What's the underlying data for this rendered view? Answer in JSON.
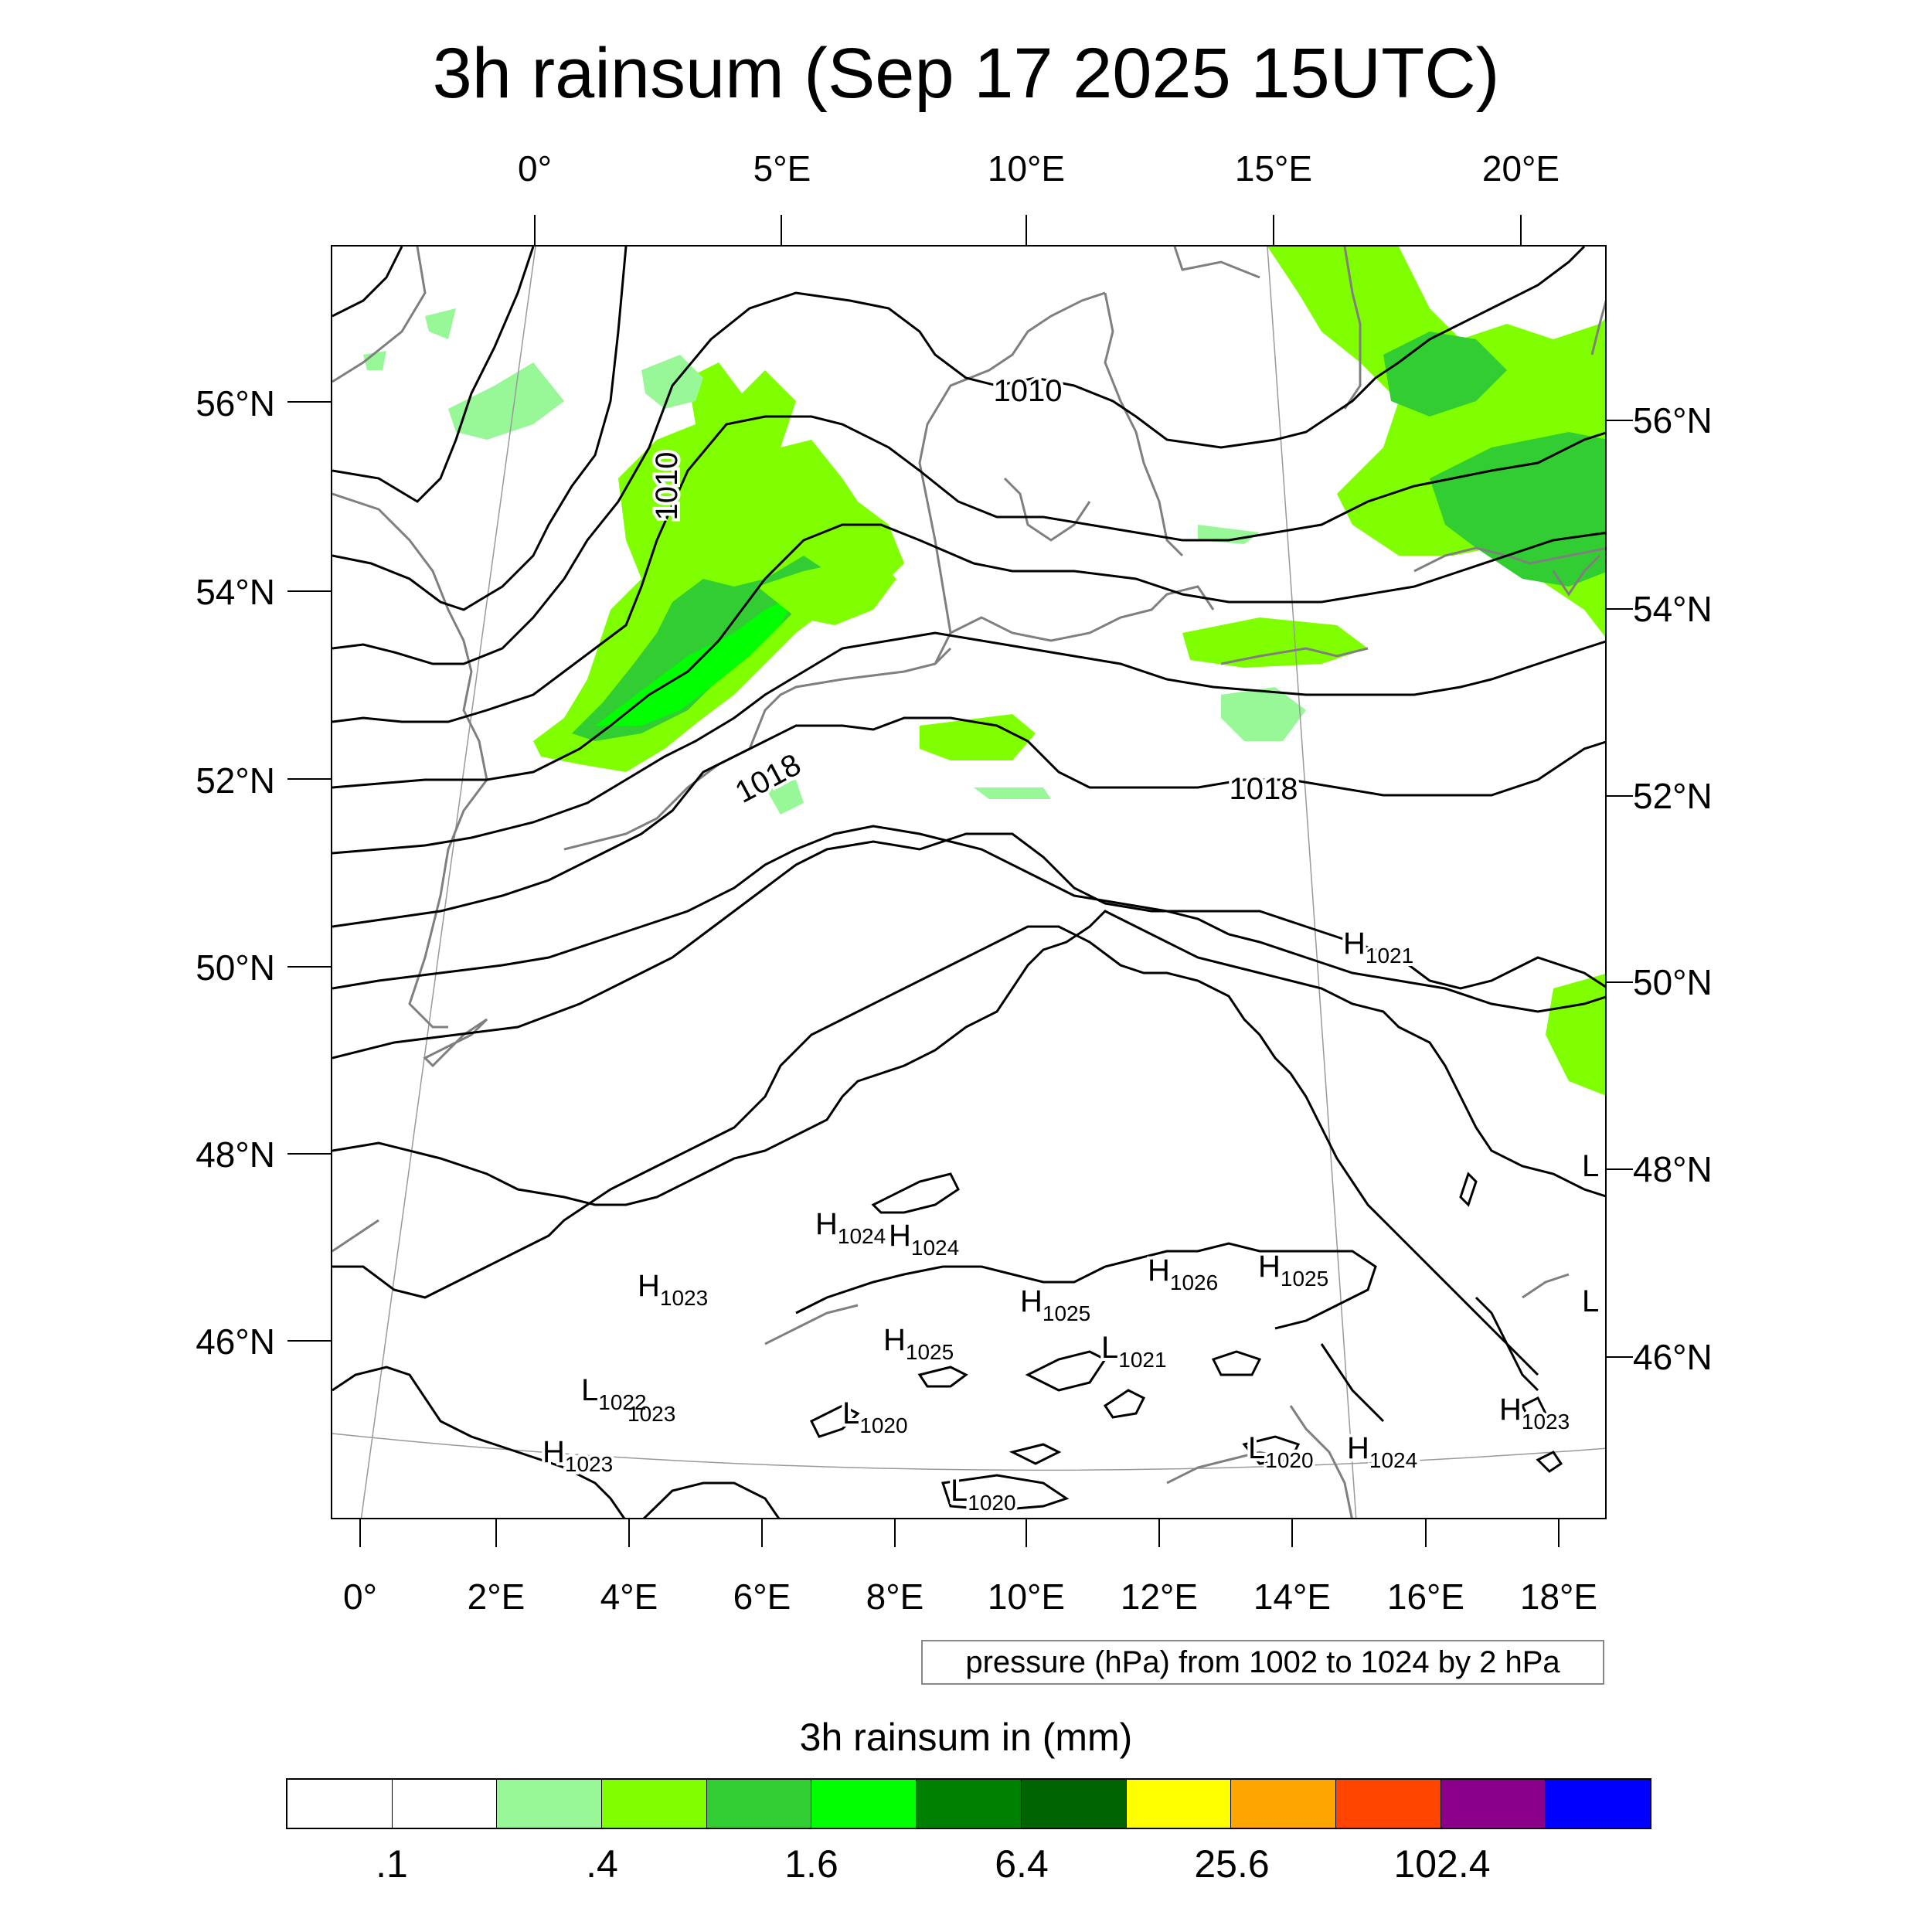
{
  "title": "3h rainsum (Sep 17 2025 15UTC)",
  "axes": {
    "top_lon_labels": [
      "0°",
      "5°E",
      "10°E",
      "15°E",
      "20°E"
    ],
    "bottom_lon_labels": [
      "0°",
      "2°E",
      "4°E",
      "6°E",
      "8°E",
      "10°E",
      "12°E",
      "14°E",
      "16°E",
      "18°E"
    ],
    "left_lat_labels": [
      "56°N",
      "54°N",
      "52°N",
      "50°N",
      "48°N",
      "46°N"
    ],
    "right_lat_labels": [
      "56°N",
      "54°N",
      "52°N",
      "50°N",
      "48°N",
      "46°N"
    ]
  },
  "isobar_labels": [
    "1010",
    "1010",
    "1018",
    "1018"
  ],
  "pressure_centers": [
    {
      "letter": "H",
      "value": "1021"
    },
    {
      "letter": "H",
      "value": "1024"
    },
    {
      "letter": "H",
      "value": "1024"
    },
    {
      "letter": "H",
      "value": "1023"
    },
    {
      "letter": "H",
      "value": "1026"
    },
    {
      "letter": "H",
      "value": "1025"
    },
    {
      "letter": "H",
      "value": "1025"
    },
    {
      "letter": "H",
      "value": "1025"
    },
    {
      "letter": "L",
      "value": "1021"
    },
    {
      "letter": "L",
      "value": "1022"
    },
    {
      "letter": "",
      "value": "1023"
    },
    {
      "letter": "L",
      "value": "1020"
    },
    {
      "letter": "H",
      "value": "1023"
    },
    {
      "letter": "L",
      "value": "1020"
    },
    {
      "letter": "L",
      "value": "1020"
    },
    {
      "letter": "H",
      "value": "1024"
    },
    {
      "letter": "H",
      "value": "1023"
    },
    {
      "letter": "L",
      "value": ""
    },
    {
      "letter": "L",
      "value": ""
    }
  ],
  "info_box": "pressure (hPa) from 1002 to 1024 by 2 hPa",
  "colorbar": {
    "title": "3h rainsum in (mm)",
    "colors": [
      "#ffffff",
      "#ffffff",
      "#98f898",
      "#80ff00",
      "#32cd32",
      "#00ff00",
      "#008000",
      "#006400",
      "#ffff00",
      "#ffa500",
      "#ff4500",
      "#8b008b",
      "#0000ff"
    ],
    "labels": [
      ".1",
      ".4",
      "1.6",
      "6.4",
      "25.6",
      "102.4"
    ]
  },
  "colors": {
    "coastline": "#7f7f7f",
    "isobar": "#000000",
    "graticule": "#999999"
  }
}
